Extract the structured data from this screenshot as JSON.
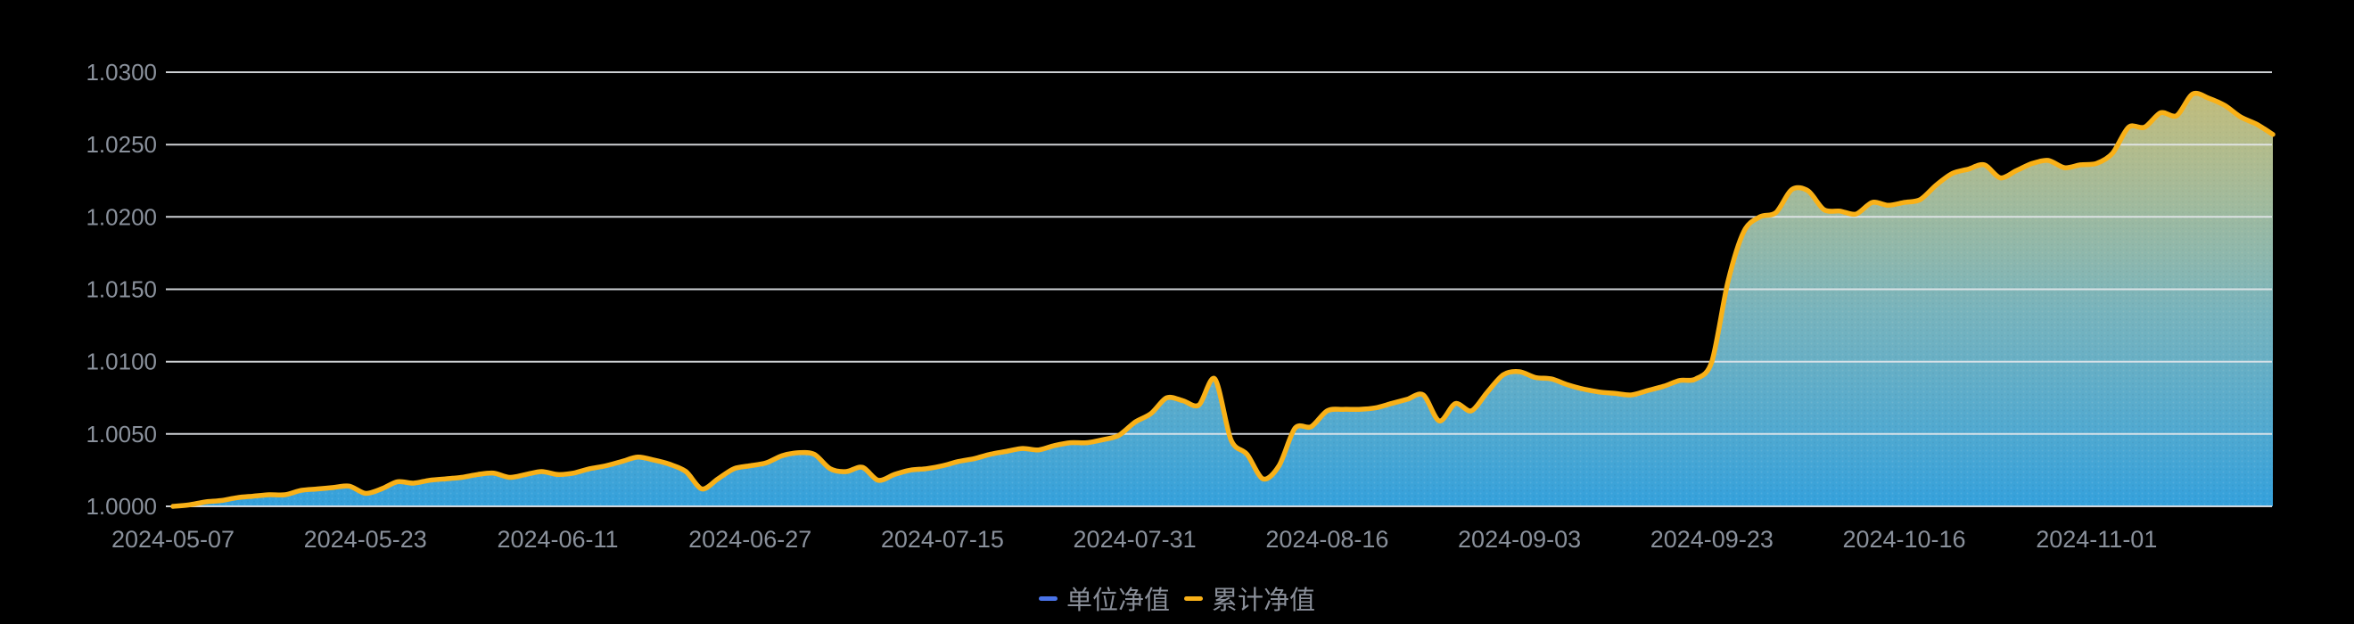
{
  "page": {
    "background": "#000000"
  },
  "legend": {
    "items": [
      {
        "label": "单位净值",
        "color": "#4A73E8"
      },
      {
        "label": "累计净值",
        "color": "#F9B118"
      }
    ]
  },
  "axes": {
    "y_labels": [
      "1.0300",
      "1.0250",
      "1.0200",
      "1.0150",
      "1.0100",
      "1.0050",
      "1.0000"
    ],
    "x_labels": [
      "2024-05-07",
      "2024-05-23",
      "2024-06-11",
      "2024-06-27",
      "2024-07-15",
      "2024-07-31",
      "2024-08-16",
      "2024-09-03",
      "2024-09-23",
      "2024-10-16",
      "2024-11-01"
    ]
  },
  "chart_data": {
    "type": "area",
    "title": "",
    "xlabel": "",
    "ylabel": "",
    "ylim": [
      1.0,
      1.03
    ],
    "y_tick_step": 0.005,
    "grid": true,
    "legend_position": "bottom-center",
    "background": "#000000",
    "grid_color": "rgba(227,231,235,0.9)",
    "label_color": "#8A919C",
    "point_count": 132,
    "x_tick_indices": [
      0,
      12,
      24,
      36,
      48,
      60,
      72,
      84,
      96,
      108,
      120
    ],
    "x_tick_labels": [
      "2024-05-07",
      "2024-05-23",
      "2024-06-11",
      "2024-06-27",
      "2024-07-15",
      "2024-07-31",
      "2024-08-16",
      "2024-09-03",
      "2024-09-23",
      "2024-10-16",
      "2024-11-01"
    ],
    "y_tick_labels": [
      "1.0000",
      "1.0050",
      "1.0100",
      "1.0150",
      "1.0200",
      "1.0250",
      "1.0300"
    ],
    "series": [
      {
        "name": "单位净值",
        "line_color": "#4A73E8",
        "fill_color": "#3AA9E6",
        "values": [
          1.0,
          1.0001,
          1.0003,
          1.0004,
          1.0006,
          1.0007,
          1.0008,
          1.0008,
          1.0011,
          1.0012,
          1.0013,
          1.0014,
          1.0009,
          1.0012,
          1.0017,
          1.0016,
          1.0018,
          1.0019,
          1.002,
          1.0022,
          1.0023,
          1.002,
          1.0022,
          1.0024,
          1.0022,
          1.0023,
          1.0026,
          1.0028,
          1.0031,
          1.0034,
          1.0032,
          1.0029,
          1.0024,
          1.0012,
          1.0019,
          1.0026,
          1.0028,
          1.003,
          1.0035,
          1.0037,
          1.0036,
          1.0026,
          1.0024,
          1.0027,
          1.0018,
          1.0022,
          1.0025,
          1.0026,
          1.0028,
          1.0031,
          1.0033,
          1.0036,
          1.0038,
          1.004,
          1.0039,
          1.0042,
          1.0044,
          1.0044,
          1.0046,
          1.0049,
          1.0058,
          1.0064,
          1.0075,
          1.0073,
          1.007,
          1.0088,
          1.0046,
          1.0036,
          1.0019,
          1.0028,
          1.0054,
          1.0055,
          1.0066,
          1.0067,
          1.0067,
          1.0068,
          1.0071,
          1.0074,
          1.0077,
          1.0059,
          1.0071,
          1.0066,
          1.0079,
          1.0091,
          1.0093,
          1.0089,
          1.0088,
          1.0084,
          1.0081,
          1.0079,
          1.0078,
          1.0077,
          1.008,
          1.0083,
          1.0087,
          1.0088,
          1.01,
          1.0155,
          1.019,
          1.02,
          1.0203,
          1.0219,
          1.0218,
          1.0205,
          1.0204,
          1.0202,
          1.021,
          1.0208,
          1.021,
          1.0212,
          1.0222,
          1.023,
          1.0233,
          1.0236,
          1.0227,
          1.0232,
          1.0237,
          1.0239,
          1.0234,
          1.0236,
          1.0237,
          1.0244,
          1.0262,
          1.0262,
          1.0272,
          1.027,
          1.0285,
          1.0282,
          1.0277,
          1.0269,
          1.0264,
          1.0257
        ]
      },
      {
        "name": "累计净值",
        "line_color": "#F9B118",
        "fill_color": "rgba(249,177,24,0.5)",
        "values": [
          1.0,
          1.0001,
          1.0003,
          1.0004,
          1.0006,
          1.0007,
          1.0008,
          1.0008,
          1.0011,
          1.0012,
          1.0013,
          1.0014,
          1.0009,
          1.0012,
          1.0017,
          1.0016,
          1.0018,
          1.0019,
          1.002,
          1.0022,
          1.0023,
          1.002,
          1.0022,
          1.0024,
          1.0022,
          1.0023,
          1.0026,
          1.0028,
          1.0031,
          1.0034,
          1.0032,
          1.0029,
          1.0024,
          1.0012,
          1.0019,
          1.0026,
          1.0028,
          1.003,
          1.0035,
          1.0037,
          1.0036,
          1.0026,
          1.0024,
          1.0027,
          1.0018,
          1.0022,
          1.0025,
          1.0026,
          1.0028,
          1.0031,
          1.0033,
          1.0036,
          1.0038,
          1.004,
          1.0039,
          1.0042,
          1.0044,
          1.0044,
          1.0046,
          1.0049,
          1.0058,
          1.0064,
          1.0075,
          1.0073,
          1.007,
          1.0088,
          1.0046,
          1.0036,
          1.0019,
          1.0028,
          1.0054,
          1.0055,
          1.0066,
          1.0067,
          1.0067,
          1.0068,
          1.0071,
          1.0074,
          1.0077,
          1.0059,
          1.0071,
          1.0066,
          1.0079,
          1.0091,
          1.0093,
          1.0089,
          1.0088,
          1.0084,
          1.0081,
          1.0079,
          1.0078,
          1.0077,
          1.008,
          1.0083,
          1.0087,
          1.0088,
          1.01,
          1.0155,
          1.019,
          1.02,
          1.0203,
          1.0219,
          1.0218,
          1.0205,
          1.0204,
          1.0202,
          1.021,
          1.0208,
          1.021,
          1.0212,
          1.0222,
          1.023,
          1.0233,
          1.0236,
          1.0227,
          1.0232,
          1.0237,
          1.0239,
          1.0234,
          1.0236,
          1.0237,
          1.0244,
          1.0262,
          1.0262,
          1.0272,
          1.027,
          1.0285,
          1.0282,
          1.0277,
          1.0269,
          1.0264,
          1.0257
        ]
      }
    ]
  }
}
